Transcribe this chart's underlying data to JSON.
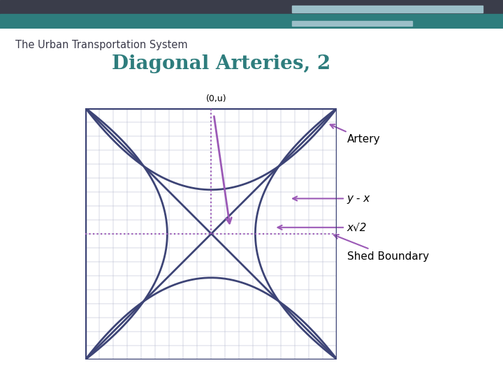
{
  "title": "Diagonal Arteries, 2",
  "subtitle": "The Urban Transportation System",
  "title_color": "#2e7d7d",
  "subtitle_color": "#3a3a4a",
  "bg_color": "#ffffff",
  "header_dark_color": "#3a3d4a",
  "header_teal_color": "#2e7d7d",
  "header_light_color": "#9bbfc8",
  "curve_color": "#3d4476",
  "grid_color": "#b0b4cc",
  "shed_color": "#9b59b6",
  "annotation_color": "#9b59b6",
  "artery_label": "Artery",
  "yx_label": "y - x",
  "xsqrt2_label": "x√2",
  "shed_label": "Shed Boundary",
  "point_label": "(0,u)",
  "curve_lw": 2.0,
  "shed_lw": 1.5,
  "grid_nx": 18,
  "grid_ny": 18
}
